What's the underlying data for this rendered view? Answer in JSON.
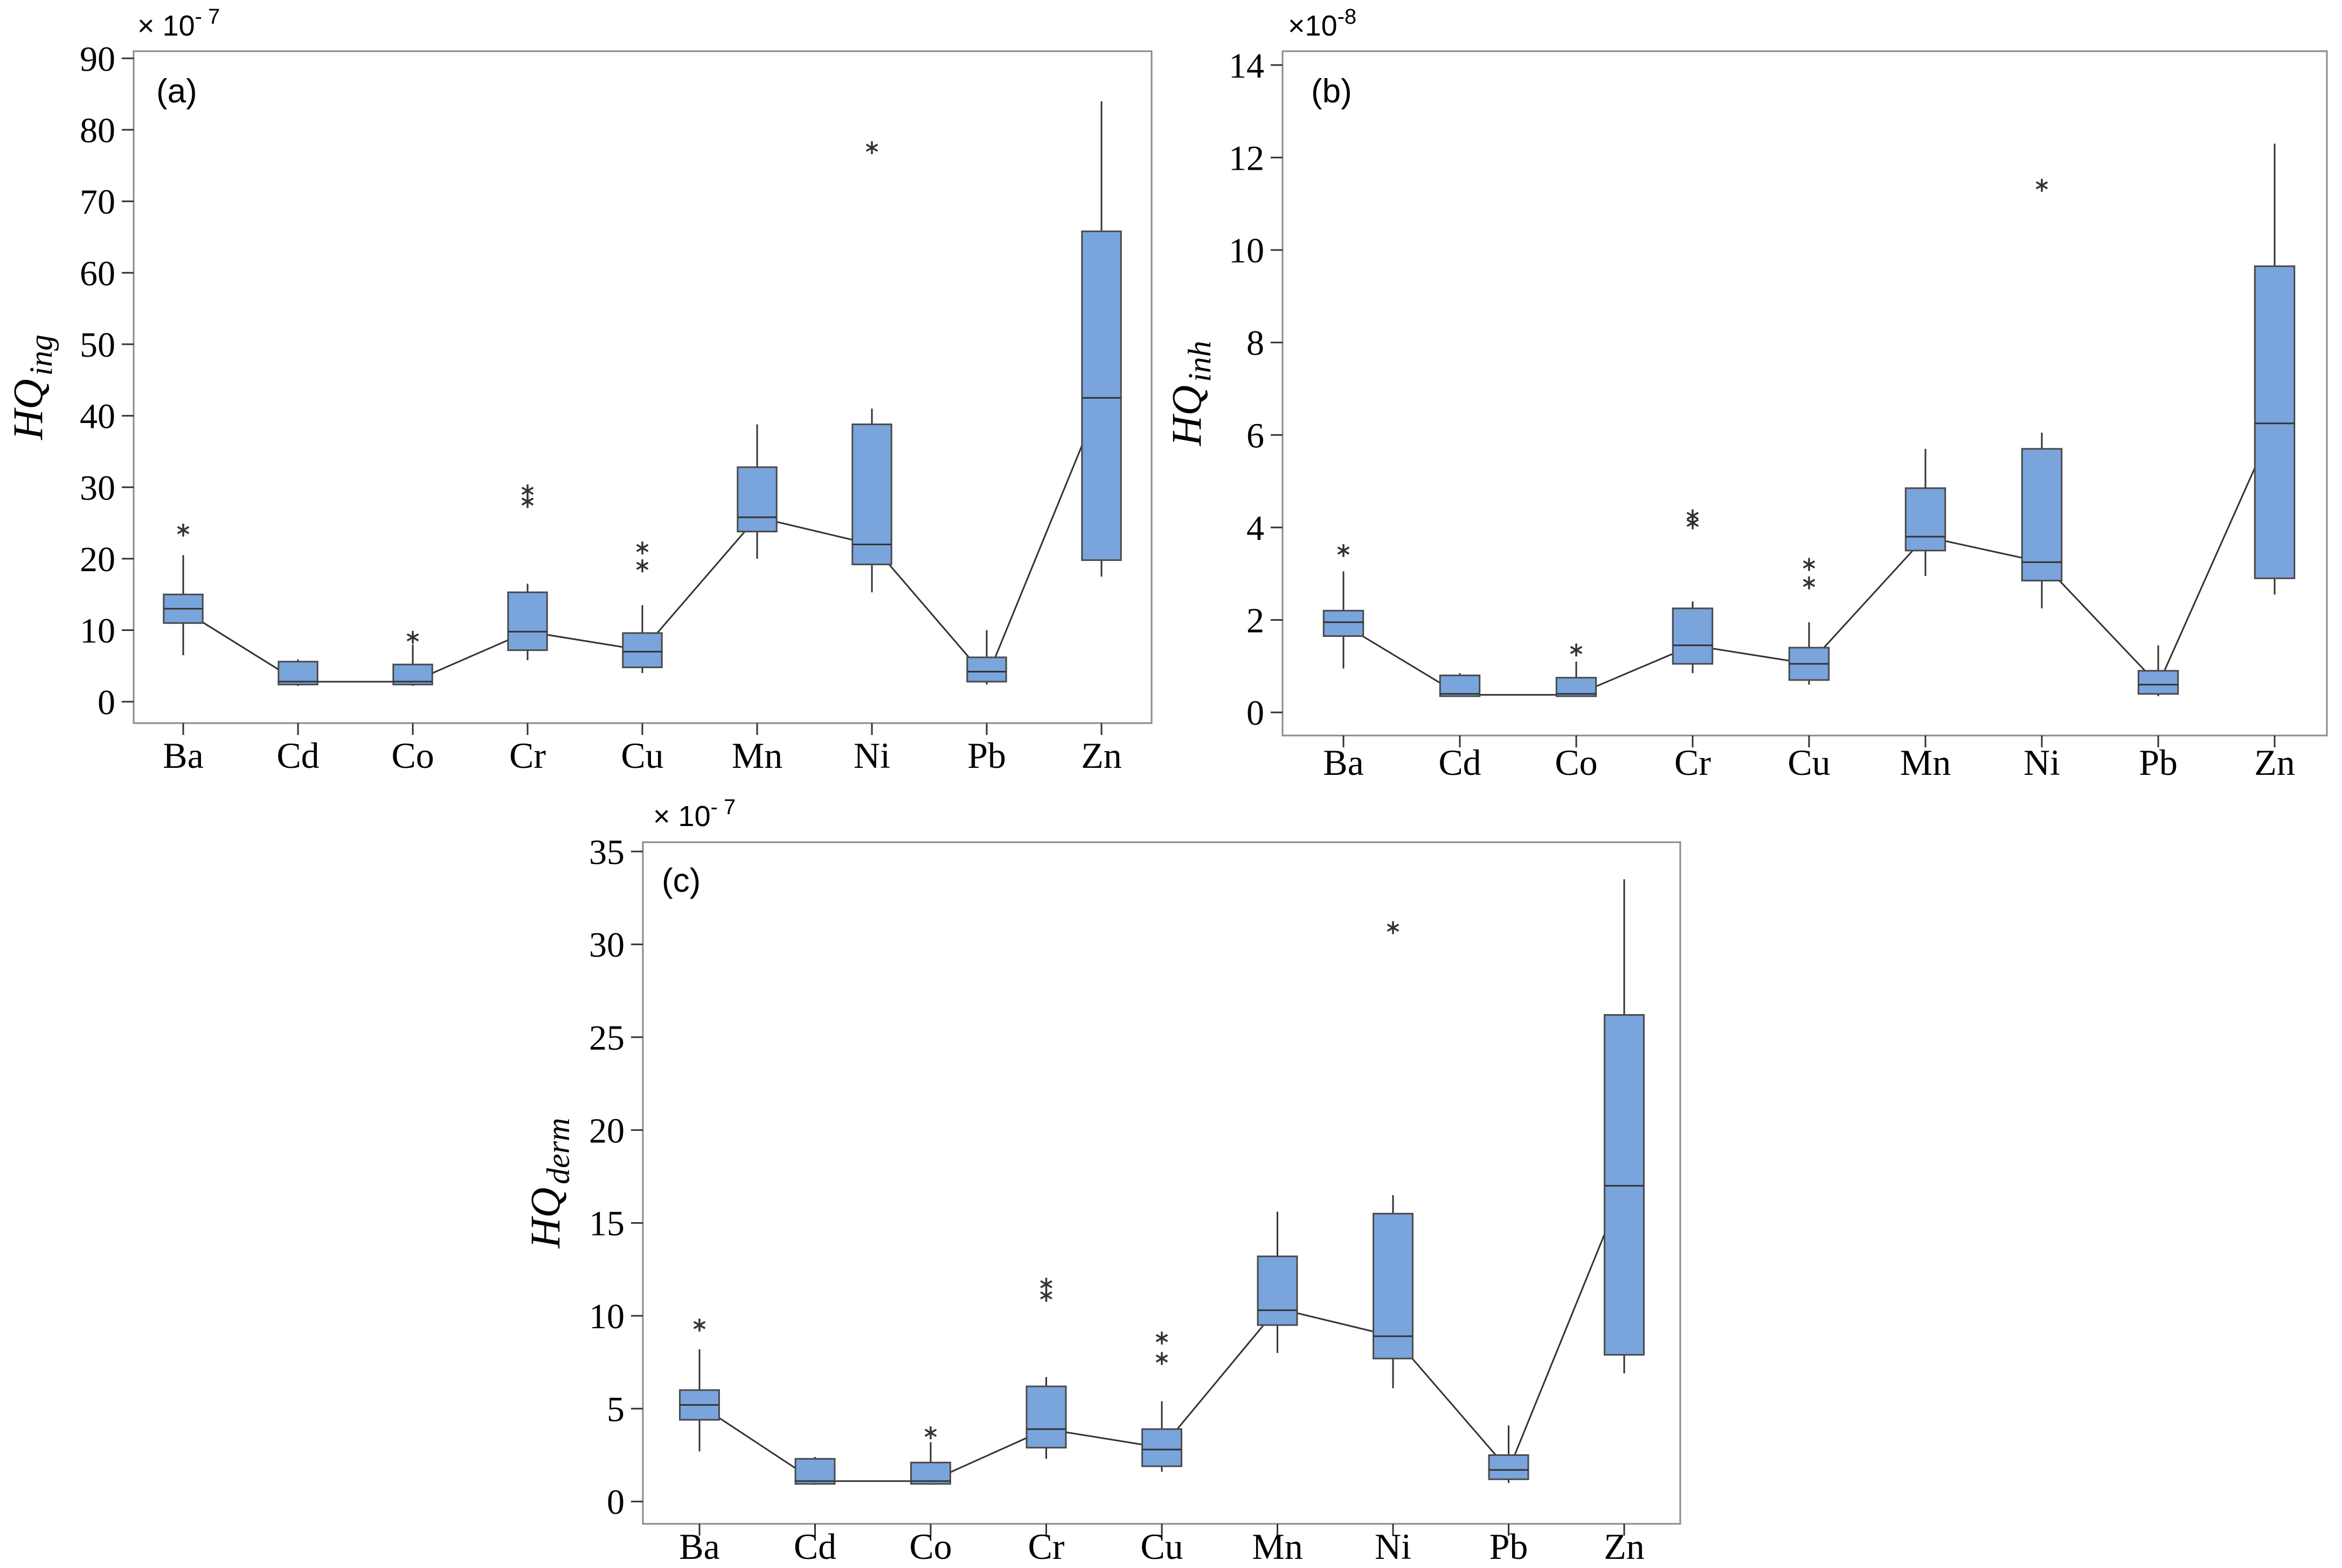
{
  "colors": {
    "box_fill": "#7aa4dc",
    "box_stroke": "#4a4a4a",
    "frame": "#8a8a8a",
    "line": "#333333"
  },
  "chart_data": [
    {
      "type": "box",
      "panel": "(a)",
      "ylabel_main": "HQ",
      "ylabel_sub": "ing",
      "multiplier_prefix": "× 10",
      "multiplier_exp": "- 7",
      "ylim": [
        -3,
        91
      ],
      "yticks": [
        0,
        10,
        20,
        30,
        40,
        50,
        60,
        70,
        80,
        90
      ],
      "categories": [
        "Ba",
        "Cd",
        "Co",
        "Cr",
        "Cu",
        "Mn",
        "Ni",
        "Pb",
        "Zn"
      ],
      "boxes": [
        {
          "min": 6.5,
          "q1": 11,
          "median": 13,
          "q3": 15,
          "max": 20.5,
          "outliers": [
            24
          ],
          "mean": 12.8
        },
        {
          "min": 2.2,
          "q1": 2.4,
          "median": 2.8,
          "q3": 5.6,
          "max": 5.9,
          "outliers": [],
          "mean": 2.8
        },
        {
          "min": 2.2,
          "q1": 2.4,
          "median": 2.8,
          "q3": 5.2,
          "max": 8.0,
          "outliers": [
            9
          ],
          "mean": 2.8
        },
        {
          "min": 5.8,
          "q1": 7.2,
          "median": 9.8,
          "q3": 15.3,
          "max": 16.5,
          "outliers": [
            28,
            29.5
          ],
          "mean": 9.8
        },
        {
          "min": 4.0,
          "q1": 4.8,
          "median": 7.0,
          "q3": 9.6,
          "max": 13.5,
          "outliers": [
            19,
            21.5
          ],
          "mean": 7.2
        },
        {
          "min": 20.0,
          "q1": 23.8,
          "median": 25.8,
          "q3": 32.8,
          "max": 38.8,
          "outliers": [],
          "mean": 25.8
        },
        {
          "min": 15.3,
          "q1": 19.2,
          "median": 22.0,
          "q3": 38.8,
          "max": 41.0,
          "outliers": [
            77.5
          ],
          "mean": 22.0
        },
        {
          "min": 2.4,
          "q1": 2.8,
          "median": 4.2,
          "q3": 6.2,
          "max": 10.0,
          "outliers": [],
          "mean": 3.3
        },
        {
          "min": 17.5,
          "q1": 19.8,
          "median": 42.5,
          "q3": 65.8,
          "max": 84.0,
          "outliers": [],
          "mean": 42.5
        }
      ]
    },
    {
      "type": "box",
      "panel": "(b)",
      "ylabel_main": "HQ",
      "ylabel_sub": "inh",
      "multiplier_prefix": "×10",
      "multiplier_exp": "-8",
      "ylim": [
        -0.5,
        14.3
      ],
      "yticks": [
        0,
        2,
        4,
        6,
        8,
        10,
        12,
        14
      ],
      "categories": [
        "Ba",
        "Cd",
        "Co",
        "Cr",
        "Cu",
        "Mn",
        "Ni",
        "Pb",
        "Zn"
      ],
      "boxes": [
        {
          "min": 0.95,
          "q1": 1.65,
          "median": 1.95,
          "q3": 2.2,
          "max": 3.05,
          "outliers": [
            3.5
          ],
          "mean": 1.9
        },
        {
          "min": 0.35,
          "q1": 0.35,
          "median": 0.4,
          "q3": 0.8,
          "max": 0.85,
          "outliers": [],
          "mean": 0.38
        },
        {
          "min": 0.35,
          "q1": 0.35,
          "median": 0.4,
          "q3": 0.75,
          "max": 1.1,
          "outliers": [
            1.35
          ],
          "mean": 0.38
        },
        {
          "min": 0.85,
          "q1": 1.05,
          "median": 1.45,
          "q3": 2.25,
          "max": 2.4,
          "outliers": [
            4.1,
            4.25
          ],
          "mean": 1.45
        },
        {
          "min": 0.6,
          "q1": 0.7,
          "median": 1.05,
          "q3": 1.4,
          "max": 1.95,
          "outliers": [
            2.8,
            3.2
          ],
          "mean": 1.05
        },
        {
          "min": 2.95,
          "q1": 3.5,
          "median": 3.8,
          "q3": 4.85,
          "max": 5.7,
          "outliers": [],
          "mean": 3.8
        },
        {
          "min": 2.25,
          "q1": 2.85,
          "median": 3.25,
          "q3": 5.7,
          "max": 6.05,
          "outliers": [
            11.4
          ],
          "mean": 3.25
        },
        {
          "min": 0.35,
          "q1": 0.4,
          "median": 0.6,
          "q3": 0.9,
          "max": 1.45,
          "outliers": [],
          "mean": 0.6
        },
        {
          "min": 2.55,
          "q1": 2.9,
          "median": 6.25,
          "q3": 9.65,
          "max": 12.3,
          "outliers": [],
          "mean": 6.25
        }
      ]
    },
    {
      "type": "box",
      "panel": "(c)",
      "ylabel_main": "HQ",
      "ylabel_sub": "derm",
      "multiplier_prefix": "× 10",
      "multiplier_exp": "- 7",
      "ylim": [
        -1.2,
        35.5
      ],
      "yticks": [
        0,
        5,
        10,
        15,
        20,
        25,
        30,
        35
      ],
      "categories": [
        "Ba",
        "Cd",
        "Co",
        "Cr",
        "Cu",
        "Mn",
        "Ni",
        "Pb",
        "Zn"
      ],
      "boxes": [
        {
          "min": 2.7,
          "q1": 4.4,
          "median": 5.2,
          "q3": 6.0,
          "max": 8.2,
          "outliers": [
            9.5
          ],
          "mean": 5.2
        },
        {
          "min": 0.9,
          "q1": 0.95,
          "median": 1.1,
          "q3": 2.3,
          "max": 2.4,
          "outliers": [],
          "mean": 1.1
        },
        {
          "min": 0.9,
          "q1": 0.95,
          "median": 1.1,
          "q3": 2.1,
          "max": 3.2,
          "outliers": [
            3.7
          ],
          "mean": 1.1
        },
        {
          "min": 2.3,
          "q1": 2.9,
          "median": 3.9,
          "q3": 6.2,
          "max": 6.7,
          "outliers": [
            11.1,
            11.7
          ],
          "mean": 3.9
        },
        {
          "min": 1.6,
          "q1": 1.9,
          "median": 2.8,
          "q3": 3.9,
          "max": 5.4,
          "outliers": [
            7.7,
            8.8
          ],
          "mean": 2.9
        },
        {
          "min": 8.0,
          "q1": 9.5,
          "median": 10.3,
          "q3": 13.2,
          "max": 15.6,
          "outliers": [],
          "mean": 10.4
        },
        {
          "min": 6.1,
          "q1": 7.7,
          "median": 8.9,
          "q3": 15.5,
          "max": 16.5,
          "outliers": [
            30.9
          ],
          "mean": 8.9
        },
        {
          "min": 1.0,
          "q1": 1.2,
          "median": 1.7,
          "q3": 2.5,
          "max": 4.1,
          "outliers": [],
          "mean": 1.7
        },
        {
          "min": 6.9,
          "q1": 7.9,
          "median": 17.0,
          "q3": 26.2,
          "max": 33.5,
          "outliers": [],
          "mean": 17.0
        }
      ]
    }
  ]
}
